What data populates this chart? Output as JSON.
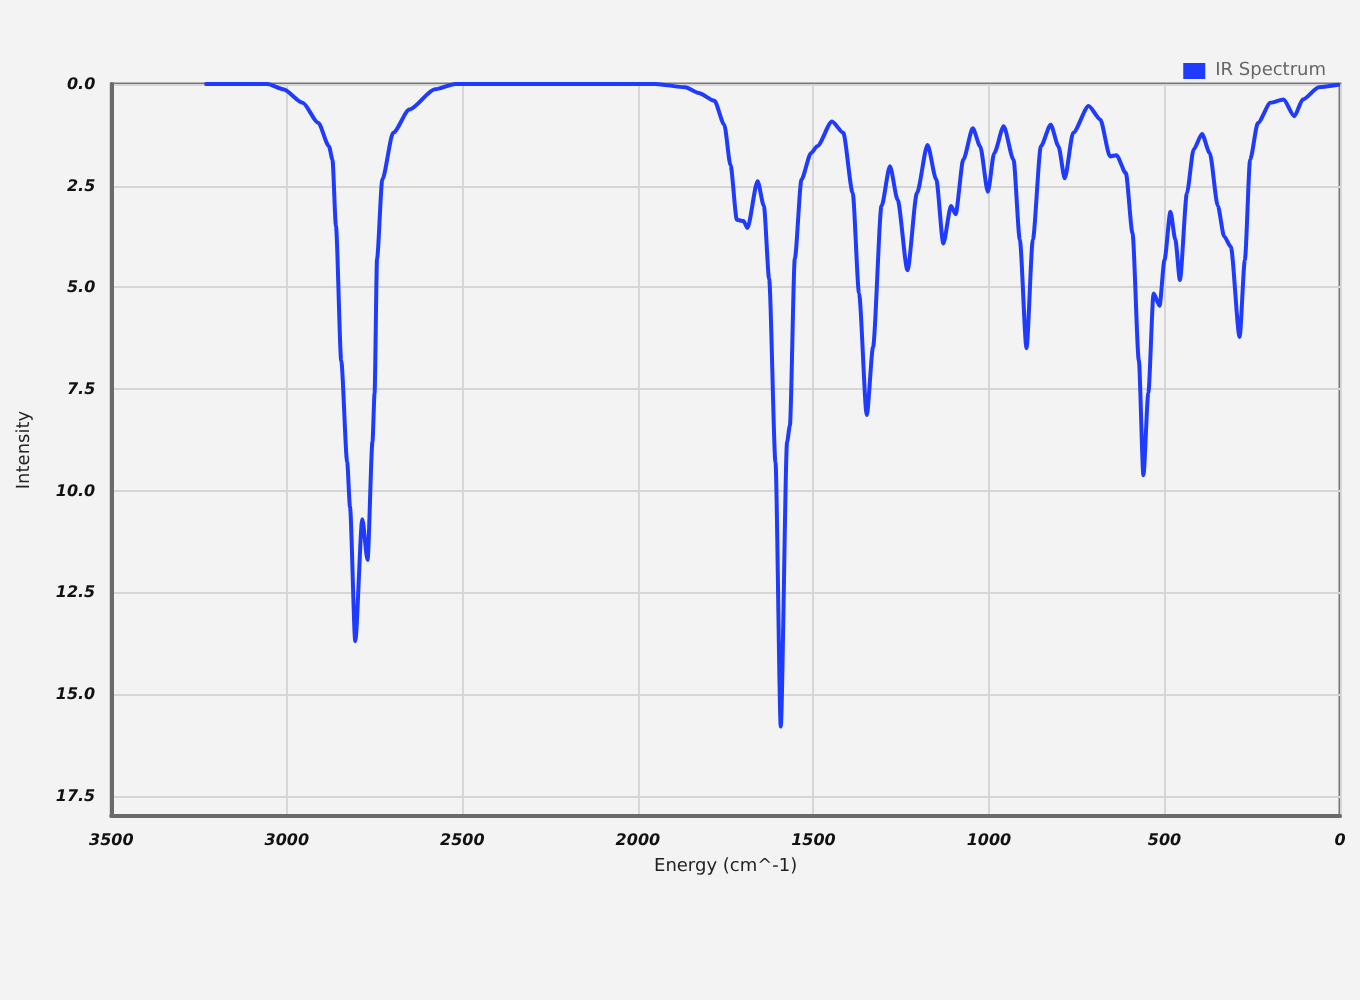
{
  "chart_data": {
    "type": "line",
    "xlabel": "Energy (cm^-1)",
    "ylabel": "Intensity",
    "x": [
      3230,
      3055,
      3010,
      2955,
      2910,
      2880,
      2870,
      2860,
      2845,
      2828,
      2820,
      2805,
      2785,
      2770,
      2756,
      2750,
      2743,
      2728,
      2697,
      2651,
      2578,
      2520,
      1950,
      1865,
      1827,
      1782,
      1754,
      1736,
      1718,
      1699,
      1688,
      1659,
      1641,
      1626,
      1608,
      1593,
      1575,
      1567,
      1553,
      1534,
      1507,
      1489,
      1447,
      1415,
      1388,
      1370,
      1348,
      1330,
      1306,
      1282,
      1260,
      1232,
      1205,
      1175,
      1150,
      1130,
      1108,
      1095,
      1073,
      1046,
      1025,
      1003,
      985,
      958,
      930,
      912,
      893,
      875,
      852,
      824,
      802,
      784,
      760,
      716,
      683,
      655,
      637,
      610,
      591,
      573,
      560,
      546,
      531,
      514,
      500,
      483,
      469,
      456,
      436,
      417,
      393,
      371,
      348,
      330,
      311,
      286,
      271,
      256,
      234,
      198,
      161,
      130,
      106,
      60,
      5
    ],
    "series": [
      {
        "name": "IR Spectrum",
        "color": "#1f3bff",
        "values": [
          0,
          0,
          0.13,
          0.46,
          0.96,
          1.53,
          1.86,
          3.5,
          6.8,
          9.3,
          10.4,
          13.7,
          10.7,
          11.7,
          8.8,
          7.6,
          4.3,
          2.35,
          1.2,
          0.63,
          0.13,
          0,
          0,
          0.08,
          0.22,
          0.41,
          1.0,
          2.0,
          3.34,
          3.37,
          3.54,
          2.39,
          3.0,
          4.8,
          9.3,
          15.8,
          8.8,
          8.4,
          4.3,
          2.35,
          1.7,
          1.53,
          0.92,
          1.2,
          2.68,
          5.15,
          8.14,
          6.46,
          3.0,
          2.02,
          2.85,
          4.58,
          2.68,
          1.5,
          2.35,
          3.92,
          3.0,
          3.2,
          1.86,
          1.09,
          1.53,
          2.65,
          1.7,
          1.04,
          1.86,
          3.83,
          6.5,
          3.83,
          1.53,
          1.0,
          1.53,
          2.32,
          1.2,
          0.54,
          0.87,
          1.78,
          1.75,
          2.19,
          3.67,
          6.8,
          9.62,
          7.6,
          5.15,
          5.45,
          4.33,
          3.14,
          3.83,
          4.82,
          2.68,
          1.61,
          1.23,
          1.7,
          3.0,
          3.75,
          4.0,
          6.22,
          4.33,
          1.86,
          0.96,
          0.46,
          0.38,
          0.79,
          0.38,
          0.08,
          0.02
        ]
      }
    ],
    "xlim": [
      3500,
      0
    ],
    "xticks": [
      3500,
      3000,
      2500,
      2000,
      1500,
      1000,
      500,
      0
    ],
    "ylim": [
      18,
      0
    ],
    "yticks": [
      {
        "value": 0,
        "label": "0.0"
      },
      2.5,
      {
        "value": 5,
        "label": "5.0"
      },
      7.5,
      {
        "value": 10,
        "label": "10.0"
      },
      12.5,
      {
        "value": 15,
        "label": "15.0"
      },
      17.5
    ],
    "grid": true,
    "legend": "top right"
  }
}
